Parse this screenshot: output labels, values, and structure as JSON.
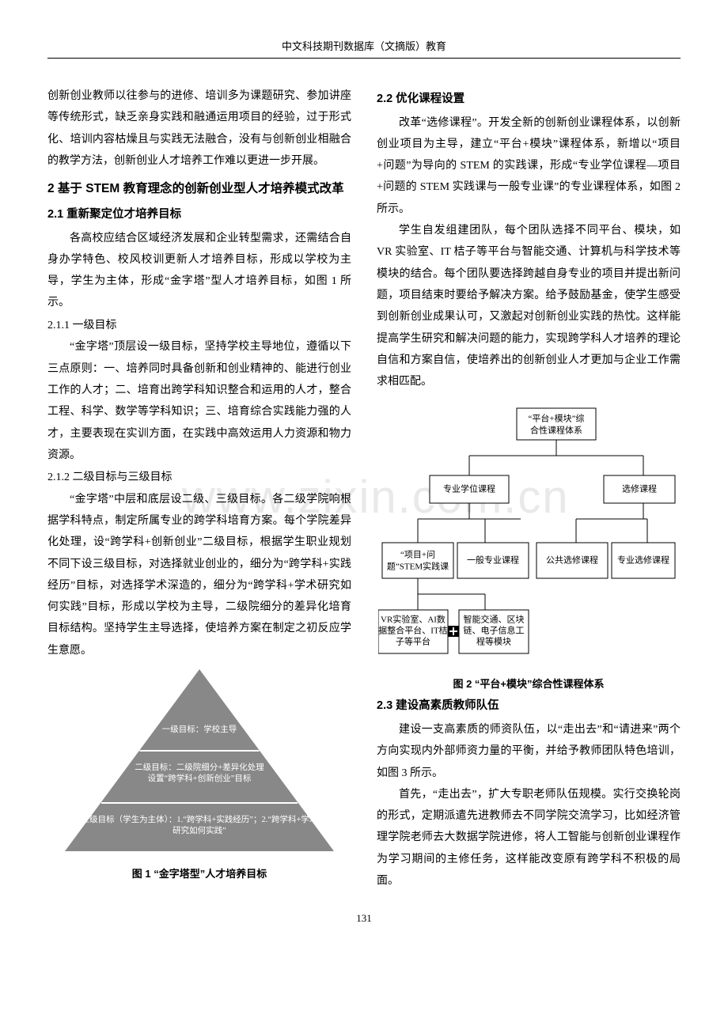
{
  "header": "中文科技期刊数据库（文摘版）教育",
  "page_number": "131",
  "watermark": "www.zixin.com.cn",
  "left": {
    "intro_para": "创新创业教师以往参与的进修、培训多为课题研究、参加讲座等传统形式，缺乏亲身实践和融通运用项目的经验，过于形式化、培训内容枯燥且与实践无法融合，没有与创新创业相融合的教学方法，创新创业人才培养工作难以更进一步开展。",
    "sec2_title": "2 基于 STEM 教育理念的创新创业型人才培养模式改革",
    "sec21_title": "2.1 重新聚定位才培养目标",
    "sec21_para": "各高校应结合区域经济发展和企业转型需求，还需结合自身办学特色、校风校训更新人才培养目标，形成以学校为主导，学生为主体，形成“金字塔”型人才培养目标，如图 1 所示。",
    "sec211_title": "2.1.1 一级目标",
    "sec211_para": "“金字塔”顶层设一级目标，坚持学校主导地位，遵循以下三点原则：一、培养同时具备创新和创业精神的、能进行创业工作的人才；二、培育出跨学科知识整合和运用的人才，整合工程、科学、数学等学科知识；三、培育综合实践能力强的人才，主要表现在实训方面，在实践中高效运用人力资源和物力资源。",
    "sec212_title": "2.1.2 二级目标与三级目标",
    "sec212_para": "“金字塔”中层和底层设二级、三级目标。各二级学院响根据学科特点，制定所属专业的跨学科培育方案。每个学院差异化处理，设“跨学科+创新创业”二级目标，根据学生职业规划不同下设三级目标，对选择就业创业的，细分为“跨学科+实践经历”目标，对选择学术深造的，细分为“跨学科+学术研究如何实践”目标，形成以学校为主导，二级院细分的差异化培育目标结构。坚持学生主导选择，使培养方案在制定之初反应学生意愿。",
    "fig1": {
      "caption": "图 1  “金字塔型”人才培养目标",
      "levels": [
        "一级目标：学校主导",
        "二级目标：二级院细分+差异化处理\n设置“跨学科+创新创业”目标",
        "三级目标（学生为主体）：1.“跨学科+实践经历”；2.“跨学科+学术研究如何实践”"
      ],
      "fill_color": "#888888",
      "text_color": "#ffffff"
    }
  },
  "right": {
    "sec22_title": "2.2 优化课程设置",
    "sec22_p1": "改革“选修课程”。开发全新的创新创业课程体系，以创新创业项目为主导，建立“平台+模块”课程体系，新增以“项目+问题”为导向的 STEM 的实践课，形成“专业学位课程—项目+问题的 STEM 实践课与一般专业课”的专业课程体系，如图 2 所示。",
    "sec22_p2": "学生自发组建团队，每个团队选择不同平台、模块，如 VR 实验室、IT 桔子等平台与智能交通、计算机与科学技术等模块的结合。每个团队要选择跨越自身专业的项目并提出新问题，项目结束时要给予解决方案。给予鼓励基金，使学生感受到创新创业成果认可，又激起对创新创业实践的热忱。这样能提高学生研究和解决问题的能力，实现跨学科人才培养的理论自信和方案自信，使培养出的创新创业人才更加与企业工作需求相匹配。",
    "fig2": {
      "caption": "图 2  “平台+模块”综合性课程体系",
      "nodes": {
        "root_l1": "“平台+模块”综",
        "root_l2": "合性课程体系",
        "degree": "专业学位课程",
        "elective": "选修课程",
        "stem_l1": "“项目+问",
        "stem_l2": "题”STEM实践课",
        "general": "一般专业课程",
        "pub_elect": "公共选修课程",
        "prof_elect": "专业选修课程",
        "plat_l1": "VR实验室、AI数",
        "plat_l2": "据整合平台、IT桔",
        "plat_l3": "子等平台",
        "mod_l1": "智能交通、区块",
        "mod_l2": "链、电子信息工",
        "mod_l3": "程等模块"
      }
    },
    "sec23_title": "2.3 建设高素质教师队伍",
    "sec23_p1": "建设一支高素质的师资队伍，以“走出去”和“请进来”两个方向实现内外部师资力量的平衡，并给予教师团队特色培训，如图 3 所示。",
    "sec23_p2": "首先，“走出去”，扩大专职老师队伍规模。实行交换轮岗的形式，定期派遣先进教师去不同学院交流学习，比如经济管理学院老师去大数据学院进修，将人工智能与创新创业课程作为学习期间的主修任务，这样能改变原有跨学科不积极的局面。"
  }
}
